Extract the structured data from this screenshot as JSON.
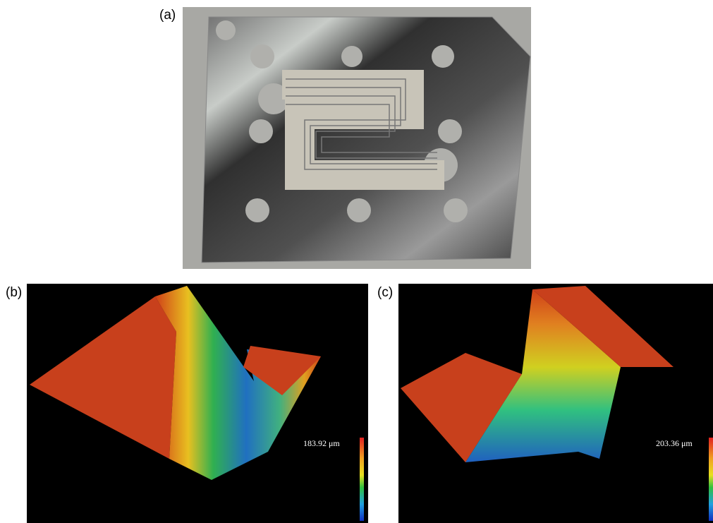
{
  "panels": [
    {
      "label": "(a)"
    },
    {
      "label": "(b)",
      "scale_label": "183.92 μm"
    },
    {
      "label": "(c)",
      "scale_label": "203.36 μm"
    }
  ]
}
